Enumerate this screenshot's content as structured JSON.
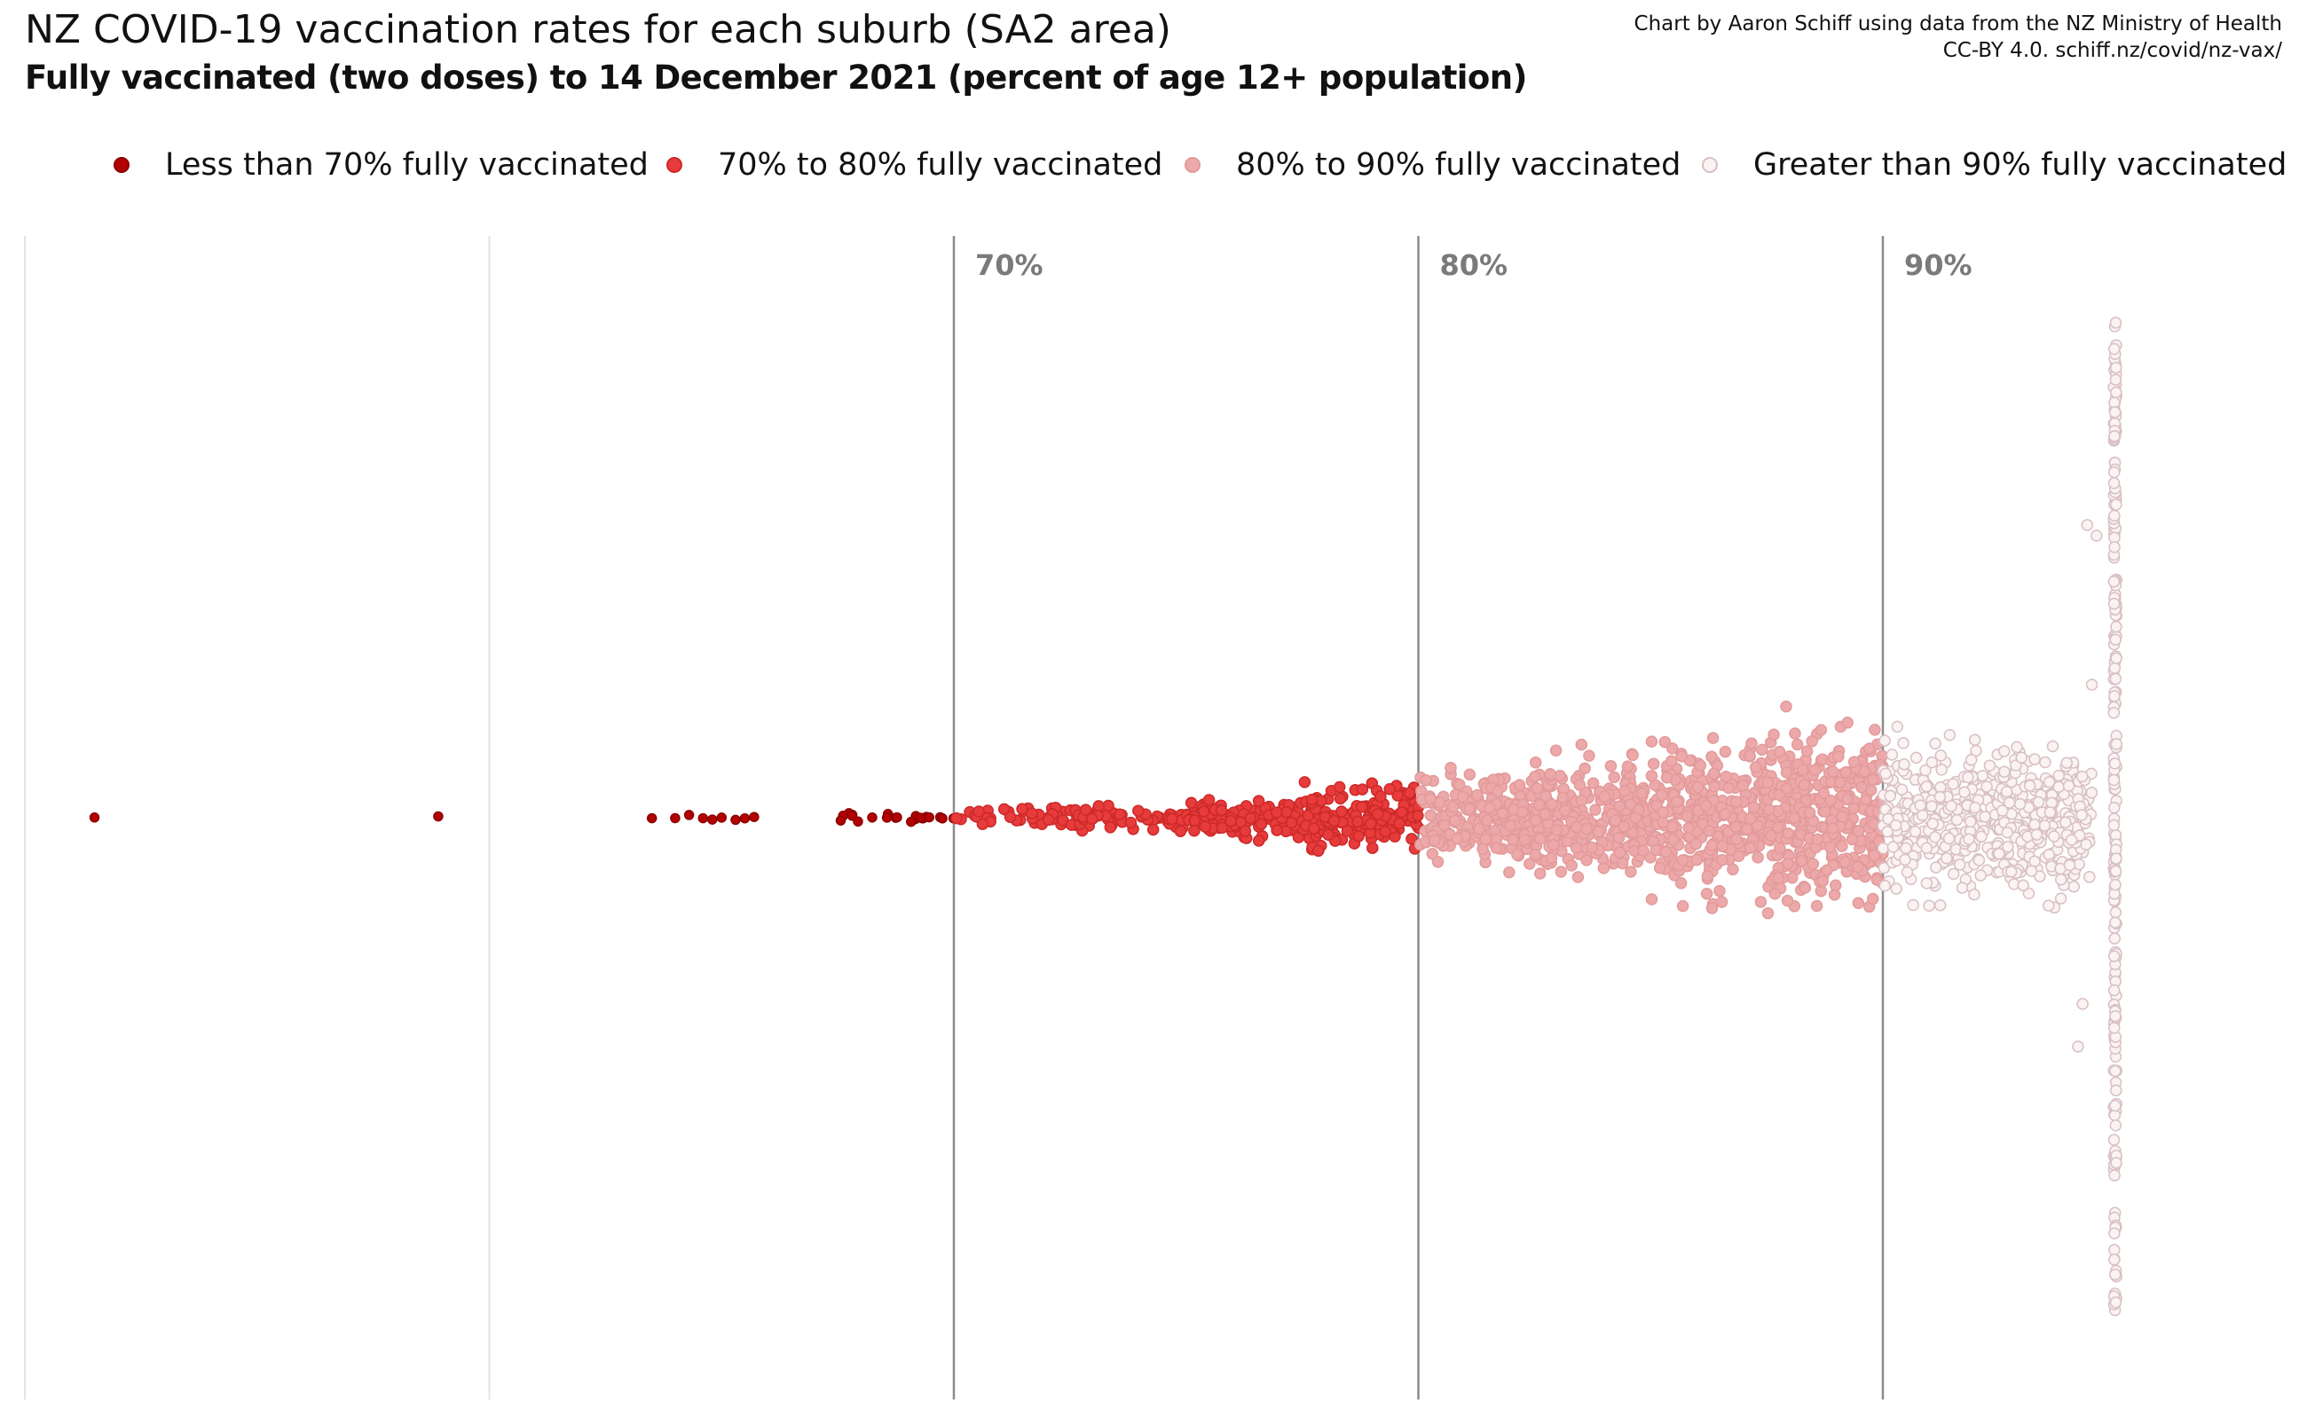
{
  "title": "NZ COVID-19 vaccination rates for each suburb (SA2 area)",
  "subtitle": "Fully vaccinated (two doses) to 14 December 2021 (percent of age 12+ population)",
  "credit": {
    "line1": "Chart by Aaron Schiff using data from the NZ Ministry of Health",
    "line2": "CC-BY 4.0. schiff.nz/covid/nz-vax/"
  },
  "legend": [
    {
      "label": "Less than 70% fully vaccinated",
      "fill": "#b30000",
      "stroke": "#8a0000"
    },
    {
      "label": "70% to 80% fully vaccinated",
      "fill": "#e83b3b",
      "stroke": "#cc2a2a"
    },
    {
      "label": "80% to 90% fully vaccinated",
      "fill": "#eda9a9",
      "stroke": "#e29a9a"
    },
    {
      "label": "Greater than 90% fully vaccinated",
      "fill": "#fbf2f2",
      "stroke": "#d8c0c4"
    }
  ],
  "chart_data": {
    "type": "scatter",
    "subtype": "beeswarm",
    "x_domain": [
      50,
      95
    ],
    "gridlines": [
      50,
      60,
      70,
      80,
      90
    ],
    "labeled_gridlines": [
      {
        "value": 70,
        "label": "70%"
      },
      {
        "value": 80,
        "label": "80%"
      },
      {
        "value": 90,
        "label": "90%"
      }
    ],
    "categories": [
      {
        "name": "Less than 70% fully vaccinated",
        "range": [
          0,
          70
        ],
        "color": "#b30000"
      },
      {
        "name": "70% to 80% fully vaccinated",
        "range": [
          70,
          80
        ],
        "color": "#e83b3b"
      },
      {
        "name": "80% to 90% fully vaccinated",
        "range": [
          80,
          90
        ],
        "color": "#eda9a9"
      },
      {
        "name": "Greater than 90% fully vaccinated",
        "range": [
          90,
          95
        ],
        "color": "#fbf2f2"
      }
    ],
    "capped_value": 95,
    "low_values": [
      51.5,
      58.9,
      63.5,
      64.0,
      64.3,
      64.6,
      64.8,
      65.0,
      65.3,
      65.5,
      65.7
    ],
    "density": [
      {
        "range": [
          67.5,
          70
        ],
        "count": 22
      },
      {
        "range": [
          70,
          72.5
        ],
        "count": 38
      },
      {
        "range": [
          72.5,
          75
        ],
        "count": 64
      },
      {
        "range": [
          75,
          77.5
        ],
        "count": 110
      },
      {
        "range": [
          77.5,
          80
        ],
        "count": 165
      },
      {
        "range": [
          80,
          82.5
        ],
        "count": 215
      },
      {
        "range": [
          82.5,
          85
        ],
        "count": 260
      },
      {
        "range": [
          85,
          87.5
        ],
        "count": 300
      },
      {
        "range": [
          87.5,
          90
        ],
        "count": 330
      },
      {
        "range": [
          90,
          92.5
        ],
        "count": 290
      },
      {
        "range": [
          92.5,
          94.5
        ],
        "count": 260
      },
      {
        "range": [
          95,
          95
        ],
        "count": 210
      }
    ]
  }
}
